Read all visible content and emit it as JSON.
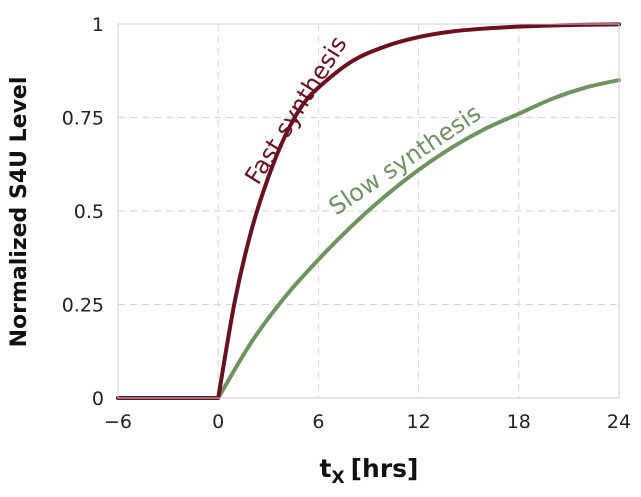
{
  "chart_data": {
    "type": "line",
    "title": "",
    "xlabel": "t",
    "xlabel_subscript": "X",
    "xlabel_unit": "[hrs]",
    "ylabel": "Normalized S4U Level",
    "xlim": [
      -6,
      24
    ],
    "ylim": [
      0,
      1
    ],
    "xticks": [
      -6,
      0,
      6,
      12,
      18,
      24
    ],
    "xtick_labels": [
      "−6",
      "0",
      "6",
      "12",
      "18",
      "24"
    ],
    "yticks": [
      0,
      0.25,
      0.5,
      0.75,
      1
    ],
    "ytick_labels": [
      "0",
      "0.25",
      "0.5",
      "0.75",
      "1"
    ],
    "grid": true,
    "legend": "none",
    "series": [
      {
        "name": "Fast synthesis",
        "color": "#6b1020",
        "x": [
          -6,
          -4,
          -2,
          0,
          1,
          2,
          3,
          4,
          5,
          6,
          8,
          10,
          12,
          14,
          16,
          18,
          20,
          22,
          24
        ],
        "y": [
          0,
          0,
          0,
          0,
          0.26,
          0.45,
          0.59,
          0.7,
          0.78,
          0.83,
          0.9,
          0.94,
          0.965,
          0.98,
          0.988,
          0.993,
          0.996,
          0.998,
          0.999
        ]
      },
      {
        "name": "Slow synthesis",
        "color": "#6f9260",
        "x": [
          -6,
          -4,
          -2,
          0,
          2,
          4,
          6,
          8,
          10,
          12,
          14,
          16,
          18,
          20,
          22,
          24
        ],
        "y": [
          0,
          0,
          0,
          0,
          0.15,
          0.27,
          0.37,
          0.46,
          0.54,
          0.61,
          0.67,
          0.72,
          0.76,
          0.8,
          0.83,
          0.85
        ]
      }
    ]
  }
}
